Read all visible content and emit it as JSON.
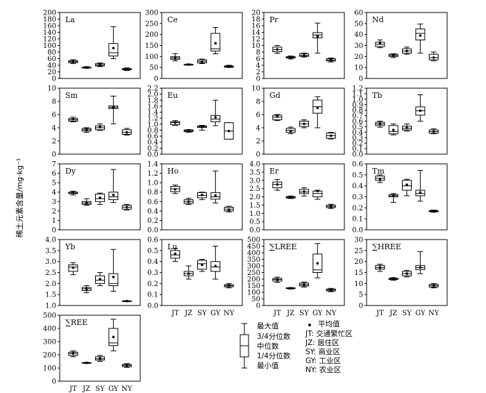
{
  "figure": {
    "y_axis_label": "稀土元素含量/mg·kg⁻¹",
    "x_categories": [
      "JT",
      "JZ",
      "SY",
      "GY",
      "NY"
    ]
  },
  "legend": {
    "box_labels": [
      "最大值",
      "3/4分位数",
      "中位数",
      "1/4分位数",
      "最小值"
    ],
    "mean_label": "平均值",
    "sites": [
      "JT: 交通繁忙区",
      "JZ: 居住区",
      "SY: 商业区",
      "GY: 工业区",
      "NY: 农业区"
    ]
  },
  "chart_data": [
    {
      "type": "box",
      "title": "La",
      "ylim": [
        0,
        200
      ],
      "yticks": [
        0,
        20,
        40,
        60,
        80,
        100,
        120,
        140,
        160,
        180,
        200
      ],
      "categories": [
        "JT",
        "JZ",
        "SY",
        "GY",
        "NY"
      ],
      "series": [
        {
          "min": 45,
          "q1": 48,
          "median": 51,
          "q3": 54,
          "max": 57,
          "mean": 51
        },
        {
          "min": 31,
          "q1": 32,
          "median": 33,
          "q3": 34,
          "max": 36,
          "mean": 33
        },
        {
          "min": 36,
          "q1": 38,
          "median": 41,
          "q3": 45,
          "max": 47,
          "mean": 41
        },
        {
          "min": 60,
          "q1": 68,
          "median": 78,
          "q3": 106,
          "max": 157,
          "mean": 92
        },
        {
          "min": 24,
          "q1": 26,
          "median": 28,
          "q3": 30,
          "max": 32,
          "mean": 28
        }
      ]
    },
    {
      "type": "box",
      "title": "Ce",
      "ylim": [
        0,
        300
      ],
      "yticks": [
        0,
        50,
        100,
        150,
        200,
        250,
        300
      ],
      "categories": [
        "JT",
        "JZ",
        "SY",
        "GY",
        "NY"
      ],
      "series": [
        {
          "min": 80,
          "q1": 87,
          "median": 93,
          "q3": 99,
          "max": 113,
          "mean": 93
        },
        {
          "min": 61,
          "q1": 62,
          "median": 63,
          "q3": 64,
          "max": 66,
          "mean": 63
        },
        {
          "min": 68,
          "q1": 71,
          "median": 78,
          "q3": 85,
          "max": 88,
          "mean": 76
        },
        {
          "min": 112,
          "q1": 125,
          "median": 135,
          "q3": 205,
          "max": 232,
          "mean": 160
        },
        {
          "min": 50,
          "q1": 51,
          "median": 54,
          "q3": 57,
          "max": 60,
          "mean": 54
        }
      ]
    },
    {
      "type": "box",
      "title": "Pr",
      "ylim": [
        0,
        20
      ],
      "yticks": [
        0,
        2,
        4,
        6,
        8,
        10,
        12,
        14,
        16,
        18,
        20
      ],
      "categories": [
        "JT",
        "JZ",
        "SY",
        "GY",
        "NY"
      ],
      "series": [
        {
          "min": 7.6,
          "q1": 8.1,
          "median": 8.7,
          "q3": 9.5,
          "max": 10,
          "mean": 8.8
        },
        {
          "min": 5.9,
          "q1": 6.2,
          "median": 6.4,
          "q3": 6.6,
          "max": 6.8,
          "mean": 6.3
        },
        {
          "min": 6.5,
          "q1": 6.7,
          "median": 7.0,
          "q3": 7.5,
          "max": 7.7,
          "mean": 7.0
        },
        {
          "min": 7.7,
          "q1": 12.3,
          "median": 13.2,
          "q3": 13.9,
          "max": 16.8,
          "mean": 12.8
        },
        {
          "min": 5.0,
          "q1": 5.3,
          "median": 5.6,
          "q3": 6.0,
          "max": 6.2,
          "mean": 5.6
        }
      ]
    },
    {
      "type": "box",
      "title": "Nd",
      "ylim": [
        0,
        60
      ],
      "yticks": [
        0,
        10,
        20,
        30,
        40,
        50,
        60
      ],
      "categories": [
        "JT",
        "JZ",
        "SY",
        "GY",
        "NY"
      ],
      "series": [
        {
          "min": 28,
          "q1": 29,
          "median": 31,
          "q3": 33,
          "max": 35,
          "mean": 32
        },
        {
          "min": 19,
          "q1": 20,
          "median": 21,
          "q3": 22,
          "max": 22.5,
          "mean": 21
        },
        {
          "min": 22,
          "q1": 23,
          "median": 25,
          "q3": 27,
          "max": 28.5,
          "mean": 25
        },
        {
          "min": 23,
          "q1": 35,
          "median": 41,
          "q3": 45,
          "max": 49.5,
          "mean": 39
        },
        {
          "min": 16,
          "q1": 17,
          "median": 19,
          "q3": 22,
          "max": 24,
          "mean": 19
        }
      ]
    },
    {
      "type": "box",
      "title": "Sm",
      "ylim": [
        0,
        10
      ],
      "yticks": [
        0,
        2,
        4,
        6,
        8,
        10
      ],
      "categories": [
        "JT",
        "JZ",
        "SY",
        "GY",
        "NY"
      ],
      "series": [
        {
          "min": 4.9,
          "q1": 5.0,
          "median": 5.2,
          "q3": 5.4,
          "max": 5.6,
          "mean": 5.3
        },
        {
          "min": 3.3,
          "q1": 3.5,
          "median": 3.7,
          "q3": 3.9,
          "max": 4.0,
          "mean": 3.7
        },
        {
          "min": 3.6,
          "q1": 3.7,
          "median": 4.0,
          "q3": 4.3,
          "max": 4.6,
          "mean": 4.1
        },
        {
          "min": 4.6,
          "q1": 6.9,
          "median": 7.1,
          "q3": 7.3,
          "max": 8.8,
          "mean": 7.1
        },
        {
          "min": 2.9,
          "q1": 3.0,
          "median": 3.3,
          "q3": 3.7,
          "max": 3.9,
          "mean": 3.3
        }
      ]
    },
    {
      "type": "box",
      "title": "Eu",
      "ylim": [
        0,
        2.2
      ],
      "yticks": [
        0,
        0.2,
        0.4,
        0.6,
        0.8,
        1.0,
        1.2,
        1.4,
        1.6,
        1.8,
        2.0,
        2.2
      ],
      "categories": [
        "JT",
        "JZ",
        "SY",
        "GY",
        "NY"
      ],
      "series": [
        {
          "min": 0.96,
          "q1": 0.98,
          "median": 1.05,
          "q3": 1.08,
          "max": 1.12,
          "mean": 1.05
        },
        {
          "min": 0.73,
          "q1": 0.75,
          "median": 0.78,
          "q3": 0.81,
          "max": 0.82,
          "mean": 0.78
        },
        {
          "min": 0.8,
          "q1": 0.89,
          "median": 0.91,
          "q3": 0.94,
          "max": 0.96,
          "mean": 0.91
        },
        {
          "min": 0.95,
          "q1": 1.08,
          "median": 1.17,
          "q3": 1.29,
          "max": 1.8,
          "mean": 1.23
        },
        {
          "min": 0.5,
          "q1": 0.5,
          "median": 0.77,
          "q3": 1.05,
          "max": 1.05,
          "mean": 0.77
        }
      ]
    },
    {
      "type": "box",
      "title": "Gd",
      "ylim": [
        0,
        10
      ],
      "yticks": [
        0,
        2,
        4,
        6,
        8,
        10
      ],
      "categories": [
        "JT",
        "JZ",
        "SY",
        "GY",
        "NY"
      ],
      "series": [
        {
          "min": 5.1,
          "q1": 5.2,
          "median": 5.6,
          "q3": 5.9,
          "max": 6.0,
          "mean": 5.7
        },
        {
          "min": 3.1,
          "q1": 3.3,
          "median": 3.6,
          "q3": 3.9,
          "max": 4.1,
          "mean": 3.5
        },
        {
          "min": 4.0,
          "q1": 4.2,
          "median": 4.6,
          "q3": 5.0,
          "max": 5.2,
          "mean": 4.6
        },
        {
          "min": 4.0,
          "q1": 6.2,
          "median": 7.2,
          "q3": 8.2,
          "max": 8.7,
          "mean": 7.0
        },
        {
          "min": 2.3,
          "q1": 2.4,
          "median": 2.8,
          "q3": 3.2,
          "max": 3.3,
          "mean": 2.8
        }
      ]
    },
    {
      "type": "box",
      "title": "Tb",
      "ylim": [
        0,
        1.2
      ],
      "yticks": [
        0,
        0.1,
        0.2,
        0.3,
        0.4,
        0.5,
        0.6,
        0.7,
        0.8,
        0.9,
        1.0,
        1.1,
        1.2
      ],
      "categories": [
        "JT",
        "JZ",
        "SY",
        "GY",
        "NY"
      ],
      "series": [
        {
          "min": 0.49,
          "q1": 0.52,
          "median": 0.55,
          "q3": 0.58,
          "max": 0.6,
          "mean": 0.55
        },
        {
          "min": 0.35,
          "q1": 0.37,
          "median": 0.41,
          "q3": 0.52,
          "max": 0.55,
          "mean": 0.44
        },
        {
          "min": 0.42,
          "q1": 0.44,
          "median": 0.47,
          "q3": 0.51,
          "max": 0.55,
          "mean": 0.48
        },
        {
          "min": 0.6,
          "q1": 0.71,
          "median": 0.79,
          "q3": 0.86,
          "max": 1.08,
          "mean": 0.79
        },
        {
          "min": 0.37,
          "q1": 0.38,
          "median": 0.41,
          "q3": 0.44,
          "max": 0.46,
          "mean": 0.41
        }
      ]
    },
    {
      "type": "box",
      "title": "Dy",
      "ylim": [
        0,
        7
      ],
      "yticks": [
        0,
        1,
        2,
        3,
        4,
        5,
        6,
        7
      ],
      "categories": [
        "JT",
        "JZ",
        "SY",
        "GY",
        "NY"
      ],
      "series": [
        {
          "min": 3.7,
          "q1": 3.85,
          "median": 3.9,
          "q3": 4.0,
          "max": 4.1,
          "mean": 3.95
        },
        {
          "min": 2.6,
          "q1": 2.7,
          "median": 2.85,
          "q3": 3.0,
          "max": 3.3,
          "mean": 2.85
        },
        {
          "min": 2.7,
          "q1": 3.0,
          "median": 3.3,
          "q3": 3.8,
          "max": 3.9,
          "mean": 3.4
        },
        {
          "min": 2.9,
          "q1": 3.2,
          "median": 3.5,
          "q3": 4.0,
          "max": 6.4,
          "mean": 3.7
        },
        {
          "min": 2.1,
          "q1": 2.2,
          "median": 2.4,
          "q3": 2.6,
          "max": 2.7,
          "mean": 2.4
        }
      ]
    },
    {
      "type": "box",
      "title": "Ho",
      "ylim": [
        0,
        1.4
      ],
      "yticks": [
        0,
        0.2,
        0.4,
        0.6,
        0.8,
        1.0,
        1.2,
        1.4
      ],
      "categories": [
        "JT",
        "JZ",
        "SY",
        "GY",
        "NY"
      ],
      "series": [
        {
          "min": 0.77,
          "q1": 0.81,
          "median": 0.87,
          "q3": 0.92,
          "max": 0.95,
          "mean": 0.86
        },
        {
          "min": 0.54,
          "q1": 0.56,
          "median": 0.6,
          "q3": 0.64,
          "max": 0.67,
          "mean": 0.6
        },
        {
          "min": 0.64,
          "q1": 0.68,
          "median": 0.73,
          "q3": 0.79,
          "max": 0.8,
          "mean": 0.74
        },
        {
          "min": 0.57,
          "q1": 0.65,
          "median": 0.7,
          "q3": 0.79,
          "max": 1.25,
          "mean": 0.73
        },
        {
          "min": 0.38,
          "q1": 0.4,
          "median": 0.44,
          "q3": 0.48,
          "max": 0.5,
          "mean": 0.43
        }
      ]
    },
    {
      "type": "box",
      "title": "Er",
      "ylim": [
        0,
        4
      ],
      "yticks": [
        0,
        0.5,
        1.0,
        1.5,
        2.0,
        2.5,
        3.0,
        3.5,
        4.0
      ],
      "categories": [
        "JT",
        "JZ",
        "SY",
        "GY",
        "NY"
      ],
      "series": [
        {
          "min": 2.4,
          "q1": 2.55,
          "median": 2.75,
          "q3": 2.9,
          "max": 3.05,
          "mean": 2.75
        },
        {
          "min": 1.9,
          "q1": 1.93,
          "median": 1.97,
          "q3": 2.02,
          "max": 2.05,
          "mean": 1.97
        },
        {
          "min": 2.05,
          "q1": 2.2,
          "median": 2.3,
          "q3": 2.45,
          "max": 2.55,
          "mean": 2.32
        },
        {
          "min": 1.85,
          "q1": 2.0,
          "median": 2.2,
          "q3": 2.35,
          "max": 2.4,
          "mean": 2.35
        },
        {
          "min": 1.3,
          "q1": 1.35,
          "median": 1.42,
          "q3": 1.5,
          "max": 1.55,
          "mean": 1.42
        }
      ]
    },
    {
      "type": "box",
      "title": "Tm",
      "ylim": [
        0,
        0.6
      ],
      "yticks": [
        0,
        0.1,
        0.2,
        0.3,
        0.4,
        0.5,
        0.6
      ],
      "categories": [
        "JT",
        "JZ",
        "SY",
        "GY",
        "NY"
      ],
      "series": [
        {
          "min": 0.43,
          "q1": 0.45,
          "median": 0.47,
          "q3": 0.49,
          "max": 0.5,
          "mean": 0.46
        },
        {
          "min": 0.25,
          "q1": 0.3,
          "median": 0.31,
          "q3": 0.32,
          "max": 0.33,
          "mean": 0.31
        },
        {
          "min": 0.31,
          "q1": 0.36,
          "median": 0.4,
          "q3": 0.45,
          "max": 0.46,
          "mean": 0.41
        },
        {
          "min": 0.26,
          "q1": 0.31,
          "median": 0.33,
          "q3": 0.36,
          "max": 0.54,
          "mean": 0.34
        },
        {
          "min": 0.16,
          "q1": 0.165,
          "median": 0.17,
          "q3": 0.175,
          "max": 0.18,
          "mean": 0.17
        }
      ]
    },
    {
      "type": "box",
      "title": "Yb",
      "ylim": [
        1.0,
        4.0
      ],
      "yticks": [
        1.0,
        1.5,
        2.0,
        2.5,
        3.0,
        3.5,
        4.0
      ],
      "categories": [
        "JT",
        "JZ",
        "SY",
        "GY",
        "NY"
      ],
      "series": [
        {
          "min": 2.4,
          "q1": 2.55,
          "median": 2.75,
          "q3": 2.85,
          "max": 2.95,
          "mean": 2.72
        },
        {
          "min": 1.58,
          "q1": 1.68,
          "median": 1.76,
          "q3": 1.82,
          "max": 1.9,
          "mean": 1.75
        },
        {
          "min": 1.9,
          "q1": 2.0,
          "median": 2.15,
          "q3": 2.35,
          "max": 2.5,
          "mean": 2.2
        },
        {
          "min": 1.65,
          "q1": 1.9,
          "median": 2.0,
          "q3": 2.45,
          "max": 3.55,
          "mean": 2.3
        },
        {
          "min": 1.18,
          "q1": 1.19,
          "median": 1.2,
          "q3": 1.21,
          "max": 1.22,
          "mean": 1.2
        }
      ]
    },
    {
      "type": "box",
      "title": "Lu",
      "ylim": [
        0,
        0.6
      ],
      "yticks": [
        0,
        0.1,
        0.2,
        0.3,
        0.4,
        0.5,
        0.6
      ],
      "categories": [
        "JT",
        "JZ",
        "SY",
        "GY",
        "NY"
      ],
      "series": [
        {
          "min": 0.4,
          "q1": 0.43,
          "median": 0.46,
          "q3": 0.5,
          "max": 0.52,
          "mean": 0.47
        },
        {
          "min": 0.24,
          "q1": 0.27,
          "median": 0.29,
          "q3": 0.31,
          "max": 0.36,
          "mean": 0.29
        },
        {
          "min": 0.31,
          "q1": 0.33,
          "median": 0.38,
          "q3": 0.41,
          "max": 0.42,
          "mean": 0.37
        },
        {
          "min": 0.24,
          "q1": 0.31,
          "median": 0.35,
          "q3": 0.4,
          "max": 0.54,
          "mean": 0.36
        },
        {
          "min": 0.16,
          "q1": 0.17,
          "median": 0.18,
          "q3": 0.19,
          "max": 0.2,
          "mean": 0.18
        }
      ]
    },
    {
      "type": "box",
      "title": "∑LREE",
      "ylim": [
        0,
        500
      ],
      "yticks": [
        0,
        50,
        100,
        150,
        200,
        250,
        300,
        350,
        400,
        450,
        500
      ],
      "categories": [
        "JT",
        "JZ",
        "SY",
        "GY",
        "NY"
      ],
      "series": [
        {
          "min": 175,
          "q1": 185,
          "median": 197,
          "q3": 205,
          "max": 215,
          "mean": 196
        },
        {
          "min": 125,
          "q1": 128,
          "median": 131,
          "q3": 134,
          "max": 136,
          "mean": 131
        },
        {
          "min": 140,
          "q1": 148,
          "median": 158,
          "q3": 170,
          "max": 178,
          "mean": 158
        },
        {
          "min": 210,
          "q1": 250,
          "median": 270,
          "q3": 390,
          "max": 470,
          "mean": 320
        },
        {
          "min": 105,
          "q1": 110,
          "median": 118,
          "q3": 125,
          "max": 130,
          "mean": 117
        }
      ]
    },
    {
      "type": "box",
      "title": "∑HREE",
      "ylim": [
        0,
        30
      ],
      "yticks": [
        0,
        5,
        10,
        15,
        20,
        25,
        30
      ],
      "categories": [
        "JT",
        "JZ",
        "SY",
        "GY",
        "NY"
      ],
      "series": [
        {
          "min": 15.5,
          "q1": 16.5,
          "median": 17.3,
          "q3": 18.2,
          "max": 18.8,
          "mean": 17.3
        },
        {
          "min": 11.5,
          "q1": 11.8,
          "median": 12.1,
          "q3": 12.4,
          "max": 12.7,
          "mean": 12.1
        },
        {
          "min": 13,
          "q1": 13.5,
          "median": 14.5,
          "q3": 15.5,
          "max": 16,
          "mean": 14.5
        },
        {
          "min": 14.5,
          "q1": 16.3,
          "median": 17.2,
          "q3": 18.2,
          "max": 24.5,
          "mean": 17.3
        },
        {
          "min": 8,
          "q1": 8.4,
          "median": 9,
          "q3": 9.6,
          "max": 10,
          "mean": 9
        }
      ]
    },
    {
      "type": "box",
      "title": "∑REE",
      "ylim": [
        0,
        500
      ],
      "yticks": [
        0,
        100,
        200,
        300,
        400,
        500
      ],
      "categories": [
        "JT",
        "JZ",
        "SY",
        "GY",
        "NY"
      ],
      "series": [
        {
          "min": 185,
          "q1": 195,
          "median": 210,
          "q3": 220,
          "max": 230,
          "mean": 210
        },
        {
          "min": 135,
          "q1": 137,
          "median": 139,
          "q3": 141,
          "max": 143,
          "mean": 139
        },
        {
          "min": 150,
          "q1": 160,
          "median": 170,
          "q3": 185,
          "max": 195,
          "mean": 172
        },
        {
          "min": 230,
          "q1": 270,
          "median": 290,
          "q3": 400,
          "max": 470,
          "mean": 335
        },
        {
          "min": 105,
          "q1": 110,
          "median": 120,
          "q3": 127,
          "max": 133,
          "mean": 120
        }
      ]
    }
  ]
}
